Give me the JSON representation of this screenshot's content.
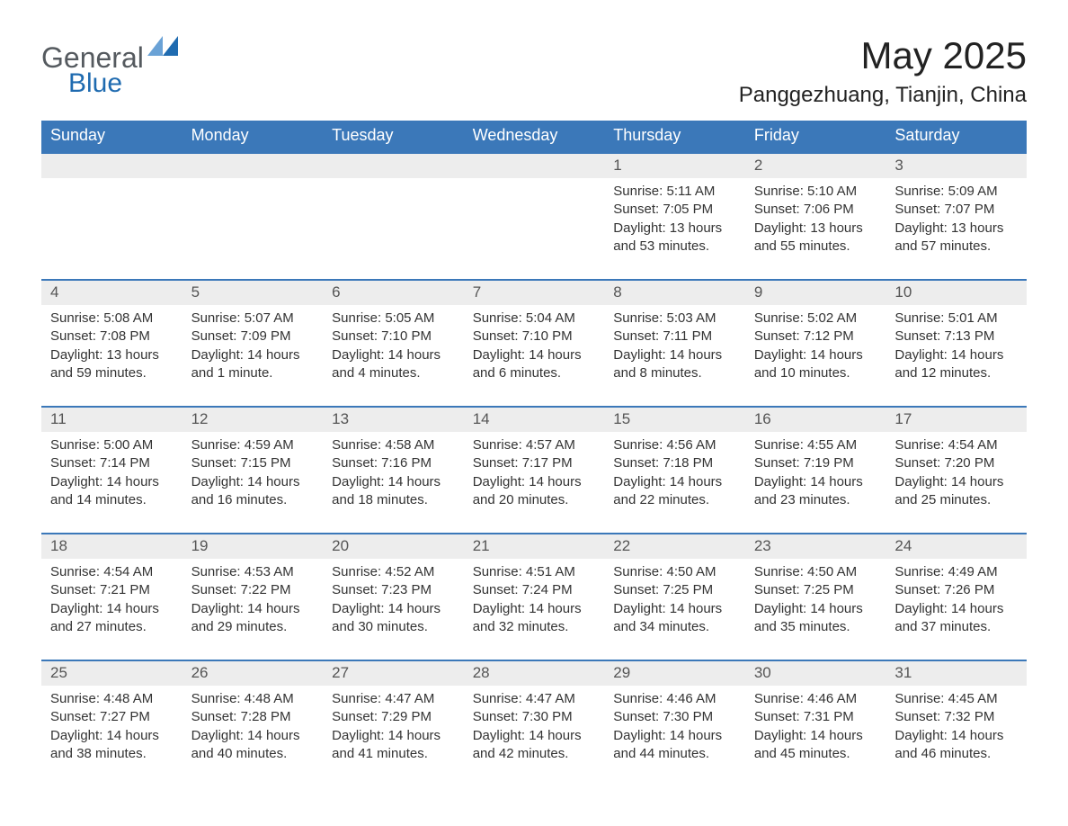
{
  "brand": {
    "text1": "General",
    "text2": "Blue",
    "icon_color": "#1f6bb0",
    "text1_color": "#555a5f",
    "text2_color": "#1f6bb0"
  },
  "title": "May 2025",
  "subtitle": "Panggezhuang, Tianjin, China",
  "colors": {
    "header_bg": "#3b78b9",
    "header_text": "#ffffff",
    "daynum_bg": "#ededed",
    "daynum_text": "#555555",
    "body_text": "#333333",
    "week_border": "#3b78b9",
    "page_bg": "#ffffff"
  },
  "typography": {
    "title_fontsize": 42,
    "subtitle_fontsize": 24,
    "weekday_fontsize": 18,
    "daynum_fontsize": 17,
    "content_fontsize": 15,
    "font_family": "Segoe UI"
  },
  "weekdays": [
    "Sunday",
    "Monday",
    "Tuesday",
    "Wednesday",
    "Thursday",
    "Friday",
    "Saturday"
  ],
  "weeks": [
    [
      {
        "day": "",
        "lines": []
      },
      {
        "day": "",
        "lines": []
      },
      {
        "day": "",
        "lines": []
      },
      {
        "day": "",
        "lines": []
      },
      {
        "day": "1",
        "lines": [
          "Sunrise: 5:11 AM",
          "Sunset: 7:05 PM",
          "Daylight: 13 hours and 53 minutes."
        ]
      },
      {
        "day": "2",
        "lines": [
          "Sunrise: 5:10 AM",
          "Sunset: 7:06 PM",
          "Daylight: 13 hours and 55 minutes."
        ]
      },
      {
        "day": "3",
        "lines": [
          "Sunrise: 5:09 AM",
          "Sunset: 7:07 PM",
          "Daylight: 13 hours and 57 minutes."
        ]
      }
    ],
    [
      {
        "day": "4",
        "lines": [
          "Sunrise: 5:08 AM",
          "Sunset: 7:08 PM",
          "Daylight: 13 hours and 59 minutes."
        ]
      },
      {
        "day": "5",
        "lines": [
          "Sunrise: 5:07 AM",
          "Sunset: 7:09 PM",
          "Daylight: 14 hours and 1 minute."
        ]
      },
      {
        "day": "6",
        "lines": [
          "Sunrise: 5:05 AM",
          "Sunset: 7:10 PM",
          "Daylight: 14 hours and 4 minutes."
        ]
      },
      {
        "day": "7",
        "lines": [
          "Sunrise: 5:04 AM",
          "Sunset: 7:10 PM",
          "Daylight: 14 hours and 6 minutes."
        ]
      },
      {
        "day": "8",
        "lines": [
          "Sunrise: 5:03 AM",
          "Sunset: 7:11 PM",
          "Daylight: 14 hours and 8 minutes."
        ]
      },
      {
        "day": "9",
        "lines": [
          "Sunrise: 5:02 AM",
          "Sunset: 7:12 PM",
          "Daylight: 14 hours and 10 minutes."
        ]
      },
      {
        "day": "10",
        "lines": [
          "Sunrise: 5:01 AM",
          "Sunset: 7:13 PM",
          "Daylight: 14 hours and 12 minutes."
        ]
      }
    ],
    [
      {
        "day": "11",
        "lines": [
          "Sunrise: 5:00 AM",
          "Sunset: 7:14 PM",
          "Daylight: 14 hours and 14 minutes."
        ]
      },
      {
        "day": "12",
        "lines": [
          "Sunrise: 4:59 AM",
          "Sunset: 7:15 PM",
          "Daylight: 14 hours and 16 minutes."
        ]
      },
      {
        "day": "13",
        "lines": [
          "Sunrise: 4:58 AM",
          "Sunset: 7:16 PM",
          "Daylight: 14 hours and 18 minutes."
        ]
      },
      {
        "day": "14",
        "lines": [
          "Sunrise: 4:57 AM",
          "Sunset: 7:17 PM",
          "Daylight: 14 hours and 20 minutes."
        ]
      },
      {
        "day": "15",
        "lines": [
          "Sunrise: 4:56 AM",
          "Sunset: 7:18 PM",
          "Daylight: 14 hours and 22 minutes."
        ]
      },
      {
        "day": "16",
        "lines": [
          "Sunrise: 4:55 AM",
          "Sunset: 7:19 PM",
          "Daylight: 14 hours and 23 minutes."
        ]
      },
      {
        "day": "17",
        "lines": [
          "Sunrise: 4:54 AM",
          "Sunset: 7:20 PM",
          "Daylight: 14 hours and 25 minutes."
        ]
      }
    ],
    [
      {
        "day": "18",
        "lines": [
          "Sunrise: 4:54 AM",
          "Sunset: 7:21 PM",
          "Daylight: 14 hours and 27 minutes."
        ]
      },
      {
        "day": "19",
        "lines": [
          "Sunrise: 4:53 AM",
          "Sunset: 7:22 PM",
          "Daylight: 14 hours and 29 minutes."
        ]
      },
      {
        "day": "20",
        "lines": [
          "Sunrise: 4:52 AM",
          "Sunset: 7:23 PM",
          "Daylight: 14 hours and 30 minutes."
        ]
      },
      {
        "day": "21",
        "lines": [
          "Sunrise: 4:51 AM",
          "Sunset: 7:24 PM",
          "Daylight: 14 hours and 32 minutes."
        ]
      },
      {
        "day": "22",
        "lines": [
          "Sunrise: 4:50 AM",
          "Sunset: 7:25 PM",
          "Daylight: 14 hours and 34 minutes."
        ]
      },
      {
        "day": "23",
        "lines": [
          "Sunrise: 4:50 AM",
          "Sunset: 7:25 PM",
          "Daylight: 14 hours and 35 minutes."
        ]
      },
      {
        "day": "24",
        "lines": [
          "Sunrise: 4:49 AM",
          "Sunset: 7:26 PM",
          "Daylight: 14 hours and 37 minutes."
        ]
      }
    ],
    [
      {
        "day": "25",
        "lines": [
          "Sunrise: 4:48 AM",
          "Sunset: 7:27 PM",
          "Daylight: 14 hours and 38 minutes."
        ]
      },
      {
        "day": "26",
        "lines": [
          "Sunrise: 4:48 AM",
          "Sunset: 7:28 PM",
          "Daylight: 14 hours and 40 minutes."
        ]
      },
      {
        "day": "27",
        "lines": [
          "Sunrise: 4:47 AM",
          "Sunset: 7:29 PM",
          "Daylight: 14 hours and 41 minutes."
        ]
      },
      {
        "day": "28",
        "lines": [
          "Sunrise: 4:47 AM",
          "Sunset: 7:30 PM",
          "Daylight: 14 hours and 42 minutes."
        ]
      },
      {
        "day": "29",
        "lines": [
          "Sunrise: 4:46 AM",
          "Sunset: 7:30 PM",
          "Daylight: 14 hours and 44 minutes."
        ]
      },
      {
        "day": "30",
        "lines": [
          "Sunrise: 4:46 AM",
          "Sunset: 7:31 PM",
          "Daylight: 14 hours and 45 minutes."
        ]
      },
      {
        "day": "31",
        "lines": [
          "Sunrise: 4:45 AM",
          "Sunset: 7:32 PM",
          "Daylight: 14 hours and 46 minutes."
        ]
      }
    ]
  ]
}
